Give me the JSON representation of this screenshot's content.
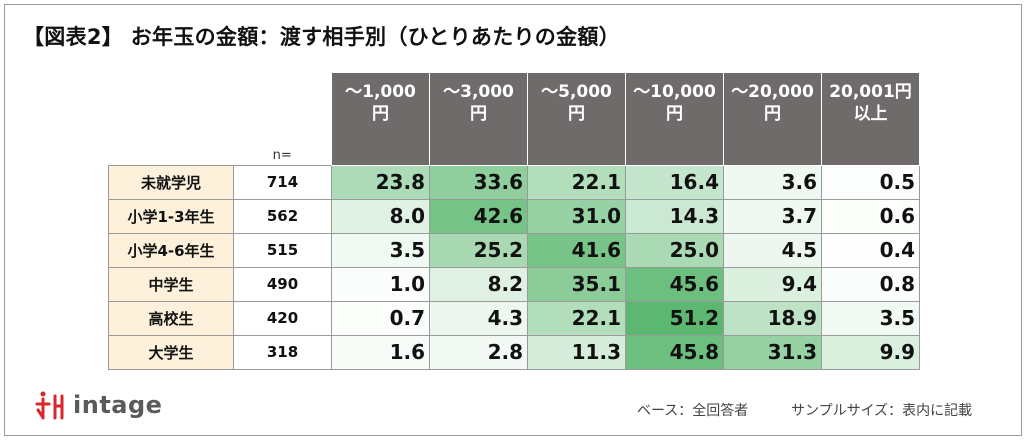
{
  "title": "【図表2】 お年玉の金額：渡す相手別（ひとりあたりの金額）",
  "n_label": "n=",
  "columns": [
    "〜1,000\n円",
    "〜3,000\n円",
    "〜5,000\n円",
    "〜10,000\n円",
    "〜20,000\n円",
    "20,001円\n以上"
  ],
  "rows": [
    {
      "label": "未就学児",
      "n": "714",
      "values": [
        23.8,
        33.6,
        22.1,
        16.4,
        3.6,
        0.5
      ]
    },
    {
      "label": "小学1-3年生",
      "n": "562",
      "values": [
        8.0,
        42.6,
        31.0,
        14.3,
        3.7,
        0.6
      ]
    },
    {
      "label": "小学4-6年生",
      "n": "515",
      "values": [
        3.5,
        25.2,
        41.6,
        25.0,
        4.5,
        0.4
      ]
    },
    {
      "label": "中学生",
      "n": "490",
      "values": [
        1.0,
        8.2,
        35.1,
        45.6,
        9.4,
        0.8
      ]
    },
    {
      "label": "高校生",
      "n": "420",
      "values": [
        0.7,
        4.3,
        22.1,
        51.2,
        18.9,
        3.5
      ]
    },
    {
      "label": "大学生",
      "n": "318",
      "values": [
        1.6,
        2.8,
        11.3,
        45.8,
        31.3,
        9.9
      ]
    }
  ],
  "chart_data": {
    "type": "heatmap",
    "title": "【図表2】 お年玉の金額：渡す相手別（ひとりあたりの金額）",
    "x": [
      "〜1,000円",
      "〜3,000円",
      "〜5,000円",
      "〜10,000円",
      "〜20,000円",
      "20,001円以上"
    ],
    "y": [
      "未就学児",
      "小学1-3年生",
      "小学4-6年生",
      "中学生",
      "高校生",
      "大学生"
    ],
    "n": [
      714,
      562,
      515,
      490,
      420,
      318
    ],
    "values": [
      [
        23.8,
        33.6,
        22.1,
        16.4,
        3.6,
        0.5
      ],
      [
        8.0,
        42.6,
        31.0,
        14.3,
        3.7,
        0.6
      ],
      [
        3.5,
        25.2,
        41.6,
        25.0,
        4.5,
        0.4
      ],
      [
        1.0,
        8.2,
        35.1,
        45.6,
        9.4,
        0.8
      ],
      [
        0.7,
        4.3,
        22.1,
        51.2,
        18.9,
        3.5
      ],
      [
        1.6,
        2.8,
        11.3,
        45.8,
        31.3,
        9.9
      ]
    ],
    "color_low": "#ffffff",
    "color_high": "#5cb870"
  },
  "footer": {
    "base": "ベース：全回答者",
    "sample": "サンプルサイズ：表内に記載"
  },
  "logo": {
    "text": "intage",
    "mark_color": "#d9262a",
    "text_color": "#5a5a5a"
  }
}
